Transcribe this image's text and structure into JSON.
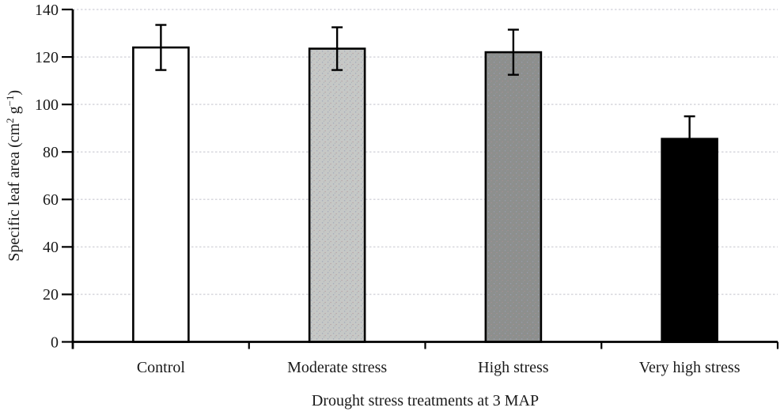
{
  "chart_data": {
    "type": "bar",
    "title": "",
    "categories": [
      "Control",
      "Moderate stress",
      "High stress",
      "Very high stress"
    ],
    "values": [
      124,
      123.5,
      122,
      85.5
    ],
    "errors": [
      9.5,
      9,
      9.5,
      9.5
    ],
    "bar_fills": [
      {
        "color": "#ffffff",
        "texture": "none"
      },
      {
        "color": "#c6c8c6",
        "texture": "fine-dots"
      },
      {
        "color": "#8d8f8d",
        "texture": "fine-dots"
      },
      {
        "color": "#000000",
        "texture": "none"
      }
    ],
    "bar_border_color": "#000000",
    "error_bar_color": "#000000",
    "xlabel": "Drought stress treatments at 3 MAP",
    "ylabel": "Specific leaf area (cm² g⁻¹)",
    "ylabel_parts": {
      "pre": "Specific leaf area (cm",
      "sup1": "2",
      "mid": " g",
      "sup2": "−1",
      "post": ")"
    },
    "ylim": [
      0,
      140
    ],
    "yticks": [
      0,
      20,
      40,
      60,
      80,
      100,
      120,
      140
    ],
    "grid": "horizontal-dashed",
    "gridline_color": "#d7d7dd",
    "axis_color": "#000000",
    "background_color": "#ffffff",
    "legend": "none"
  }
}
